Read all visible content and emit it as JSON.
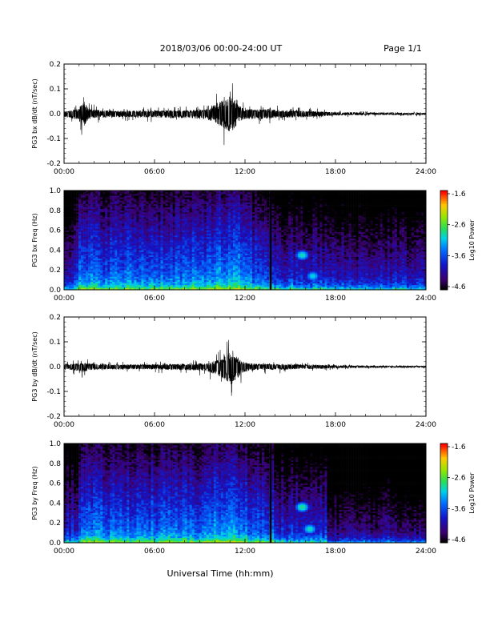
{
  "header": {
    "title": "2018/03/06  00:00-24:00 UT",
    "page": "Page 1/1"
  },
  "chart_data": [
    {
      "type": "line",
      "ylabel": "PG3 bx dB/dt (nT/sec)",
      "xlim": [
        0,
        24
      ],
      "ylim": [
        -0.2,
        0.2
      ],
      "x_ticks": [
        "00:00",
        "06:00",
        "12:00",
        "18:00",
        "24:00"
      ],
      "y_ticks": [
        "-0.2",
        "-0.1",
        "0.0",
        "0.1",
        "0.2"
      ],
      "envelope": {
        "hours": [
          0,
          0.5,
          1.0,
          1.3,
          1.5,
          1.8,
          2.5,
          4,
          6,
          8,
          9.5,
          10.5,
          10.8,
          11.0,
          11.3,
          11.6,
          12,
          13,
          14,
          15,
          16,
          17,
          18,
          20,
          22,
          24
        ],
        "upper": [
          0.025,
          0.03,
          0.05,
          0.12,
          0.07,
          0.04,
          0.03,
          0.025,
          0.03,
          0.03,
          0.04,
          0.12,
          0.14,
          0.15,
          0.13,
          0.07,
          0.04,
          0.04,
          0.035,
          0.03,
          0.025,
          0.02,
          0.012,
          0.01,
          0.008,
          0.008
        ],
        "lower": [
          -0.03,
          -0.04,
          -0.06,
          -0.12,
          -0.08,
          -0.04,
          -0.035,
          -0.03,
          -0.035,
          -0.04,
          -0.05,
          -0.12,
          -0.15,
          -0.17,
          -0.13,
          -0.07,
          -0.05,
          -0.045,
          -0.04,
          -0.035,
          -0.03,
          -0.025,
          -0.015,
          -0.012,
          -0.01,
          -0.01
        ]
      }
    },
    {
      "type": "heatmap",
      "ylabel": "PG3 bx Freq (Hz)",
      "colorbar_label": "Log10 Power",
      "xlim": [
        0,
        24
      ],
      "ylim": [
        0.0,
        1.0
      ],
      "x_ticks": [
        "00:00",
        "06:00",
        "12:00",
        "18:00",
        "24:00"
      ],
      "y_ticks": [
        "0.0",
        "0.2",
        "0.4",
        "0.6",
        "0.8",
        "1.0"
      ],
      "colorbar_ticks": [
        "-1.6",
        "-2.6",
        "-3.6",
        "-4.6"
      ],
      "clim": [
        -4.6,
        -1.6
      ],
      "data_gap_hour": 13.7,
      "features": [
        {
          "hour": 15.8,
          "freq": 0.35,
          "value": -2.9
        },
        {
          "hour": 16.5,
          "freq": 0.14,
          "value": -3.0
        }
      ]
    },
    {
      "type": "line",
      "ylabel": "PG3 by dB/dt (nT/sec)",
      "xlim": [
        0,
        24
      ],
      "ylim": [
        -0.2,
        0.2
      ],
      "x_ticks": [
        "00:00",
        "06:00",
        "12:00",
        "18:00",
        "24:00"
      ],
      "y_ticks": [
        "-0.2",
        "-0.1",
        "0.0",
        "0.1",
        "0.2"
      ],
      "envelope": {
        "hours": [
          0,
          0.5,
          1.0,
          1.3,
          1.6,
          2.0,
          3,
          4.5,
          6,
          8,
          9.5,
          10.5,
          10.8,
          11.1,
          11.4,
          11.8,
          12.2,
          13,
          14,
          15,
          16,
          17,
          18,
          20,
          22,
          24
        ],
        "upper": [
          0.02,
          0.025,
          0.03,
          0.04,
          0.03,
          0.025,
          0.02,
          0.02,
          0.02,
          0.025,
          0.03,
          0.08,
          0.12,
          0.13,
          0.1,
          0.05,
          0.03,
          0.025,
          0.025,
          0.02,
          0.02,
          0.015,
          0.01,
          0.008,
          0.006,
          0.006
        ],
        "lower": [
          -0.025,
          -0.03,
          -0.04,
          -0.05,
          -0.035,
          -0.03,
          -0.025,
          -0.025,
          -0.025,
          -0.03,
          -0.04,
          -0.1,
          -0.14,
          -0.16,
          -0.12,
          -0.06,
          -0.035,
          -0.03,
          -0.03,
          -0.025,
          -0.02,
          -0.02,
          -0.012,
          -0.01,
          -0.008,
          -0.008
        ]
      }
    },
    {
      "type": "heatmap",
      "ylabel": "PG3 by Freq (Hz)",
      "colorbar_label": "Log10 Power",
      "xlim": [
        0,
        24
      ],
      "ylim": [
        0.0,
        1.0
      ],
      "x_ticks": [
        "00:00",
        "06:00",
        "12:00",
        "18:00",
        "24:00"
      ],
      "y_ticks": [
        "0.0",
        "0.2",
        "0.4",
        "0.6",
        "0.8",
        "1.0"
      ],
      "colorbar_ticks": [
        "-1.6",
        "-2.6",
        "-3.6",
        "-4.6"
      ],
      "clim": [
        -4.6,
        -1.6
      ],
      "data_gap_hour": 13.7,
      "features": [
        {
          "hour": 15.8,
          "freq": 0.36,
          "value": -2.8
        },
        {
          "hour": 16.3,
          "freq": 0.14,
          "value": -2.9
        }
      ]
    }
  ],
  "xaxis_label": "Universal Time (hh:mm)"
}
